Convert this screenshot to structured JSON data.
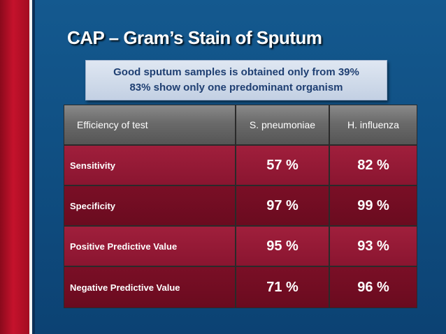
{
  "slide": {
    "title": "CAP – Gram’s Stain of Sputum",
    "note": {
      "line1": "Good sputum samples is obtained only from 39%",
      "line2": "83% show only one predominant organism"
    }
  },
  "table": {
    "headers": [
      "Efficiency of test",
      "S. pneumoniae",
      "H. influenza"
    ],
    "rows": [
      {
        "label": "Sensitivity",
        "s_pneumoniae": "57 %",
        "h_influenza": "82 %"
      },
      {
        "label": "Specificity",
        "s_pneumoniae": "97 %",
        "h_influenza": "99 %"
      },
      {
        "label": "Positive Predictive Value",
        "s_pneumoniae": "95 %",
        "h_influenza": "93 %"
      },
      {
        "label": "Negative Predictive Value",
        "s_pneumoniae": "71 %",
        "h_influenza": "96 %"
      }
    ]
  },
  "colors": {
    "background": "#0f4d7e",
    "accent_red": "#c5122c",
    "row_light": "#a01f3c",
    "row_dark": "#7a0f26",
    "header_gray": "#6a6a6a"
  }
}
